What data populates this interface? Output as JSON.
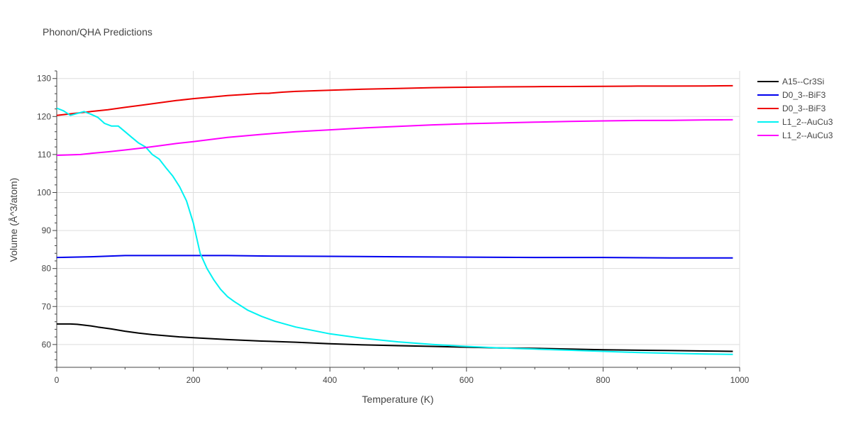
{
  "chart_data": {
    "type": "line",
    "title": "Phonon/QHA Predictions",
    "xlabel": "Temperature (K)",
    "ylabel": "Volume (Å^3/atom)",
    "xlim": [
      0,
      1000
    ],
    "ylim": [
      54,
      132
    ],
    "xticks": [
      0,
      200,
      400,
      600,
      800,
      1000
    ],
    "yticks": [
      60,
      70,
      80,
      90,
      100,
      110,
      120,
      130
    ],
    "grid": true,
    "legend_position": "top-right",
    "series": [
      {
        "name": "A15--Cr3Si",
        "color": "#000000",
        "x": [
          0,
          10,
          20,
          30,
          40,
          50,
          60,
          80,
          100,
          120,
          140,
          160,
          180,
          200,
          250,
          300,
          350,
          400,
          450,
          500,
          550,
          600,
          650,
          700,
          750,
          800,
          850,
          900,
          950,
          990
        ],
        "y": [
          65.4,
          65.4,
          65.4,
          65.3,
          65.1,
          64.9,
          64.6,
          64.1,
          63.5,
          63.0,
          62.6,
          62.3,
          62.0,
          61.8,
          61.3,
          60.9,
          60.6,
          60.2,
          59.9,
          59.7,
          59.5,
          59.3,
          59.1,
          59.0,
          58.8,
          58.6,
          58.5,
          58.4,
          58.3,
          58.2
        ]
      },
      {
        "name": "D0_3--BiF3",
        "color": "#0000ee",
        "x": [
          0,
          50,
          100,
          150,
          200,
          250,
          300,
          400,
          500,
          600,
          700,
          800,
          900,
          990
        ],
        "y": [
          82.9,
          83.1,
          83.4,
          83.4,
          83.4,
          83.4,
          83.3,
          83.2,
          83.1,
          83.0,
          82.9,
          82.9,
          82.8,
          82.8
        ]
      },
      {
        "name": "D0_3--BiF3",
        "color": "#ee0000",
        "x": [
          0,
          25,
          50,
          75,
          100,
          125,
          150,
          175,
          200,
          225,
          250,
          275,
          300,
          310,
          330,
          350,
          400,
          450,
          500,
          550,
          600,
          650,
          700,
          750,
          800,
          850,
          900,
          950,
          990
        ],
        "y": [
          120.3,
          120.8,
          121.3,
          121.8,
          122.4,
          123.0,
          123.6,
          124.2,
          124.7,
          125.1,
          125.5,
          125.8,
          126.1,
          126.1,
          126.4,
          126.6,
          126.9,
          127.2,
          127.4,
          127.6,
          127.7,
          127.8,
          127.85,
          127.9,
          127.95,
          128.0,
          128.0,
          128.05,
          128.1
        ]
      },
      {
        "name": "L1_2--AuCu3",
        "color": "#00f2f2",
        "x": [
          0,
          10,
          20,
          30,
          40,
          50,
          60,
          70,
          80,
          90,
          100,
          110,
          120,
          130,
          140,
          150,
          160,
          170,
          180,
          190,
          200,
          205,
          210,
          220,
          230,
          240,
          250,
          260,
          280,
          300,
          320,
          350,
          400,
          450,
          500,
          550,
          600,
          650,
          700,
          750,
          800,
          850,
          900,
          950,
          990
        ],
        "y": [
          122.2,
          121.5,
          120.3,
          120.8,
          121.3,
          120.6,
          119.8,
          118.2,
          117.5,
          117.5,
          116.0,
          114.5,
          113.0,
          112.0,
          110.0,
          108.8,
          106.5,
          104.3,
          101.5,
          97.8,
          92.0,
          88.0,
          84.0,
          80.0,
          77.0,
          74.5,
          72.6,
          71.3,
          69.0,
          67.4,
          66.1,
          64.6,
          62.8,
          61.6,
          60.7,
          60.0,
          59.5,
          59.1,
          58.8,
          58.5,
          58.2,
          57.9,
          57.7,
          57.5,
          57.4
        ]
      },
      {
        "name": "L1_2--AuCu3",
        "color": "#ff00ff",
        "x": [
          0,
          20,
          35,
          50,
          75,
          100,
          125,
          150,
          175,
          200,
          250,
          300,
          350,
          400,
          450,
          500,
          550,
          600,
          650,
          700,
          750,
          800,
          850,
          900,
          950,
          990
        ],
        "y": [
          109.8,
          109.9,
          110.0,
          110.3,
          110.7,
          111.2,
          111.7,
          112.3,
          112.9,
          113.4,
          114.5,
          115.3,
          116.0,
          116.5,
          117.0,
          117.4,
          117.8,
          118.1,
          118.3,
          118.5,
          118.7,
          118.85,
          118.95,
          119.0,
          119.1,
          119.15
        ]
      }
    ]
  }
}
